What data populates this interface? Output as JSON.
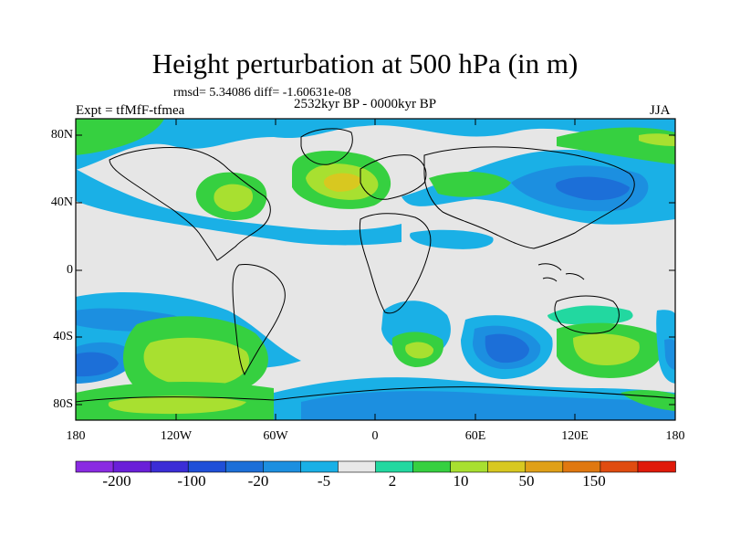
{
  "title": "Height perturbation at 500 hPa (in m)",
  "stats": "rmsd= 5.34086 diff= -1.60631e-08",
  "left_label": "Expt = tfMfF-tfmea",
  "center_label": "2532kyr BP - 0000kyr BP",
  "right_label": "JJA",
  "lat_labels": [
    "80N",
    "40N",
    "0",
    "40S",
    "80S"
  ],
  "lon_labels": [
    "180",
    "120W",
    "60W",
    "0",
    "60E",
    "120E",
    "180"
  ],
  "colorbar": {
    "colors": [
      "#8a2be2",
      "#6a1fd8",
      "#3b2dd6",
      "#1f4fd8",
      "#1c6fd8",
      "#1c8fe0",
      "#1ab0e6",
      "#e8e8e8",
      "#22d8a0",
      "#36d040",
      "#a8e030",
      "#d8c820",
      "#e0a018",
      "#e07810",
      "#e04c10",
      "#e01a0a"
    ],
    "labels": [
      "-200",
      "-100",
      "-20",
      "-5",
      "2",
      "10",
      "50",
      "150"
    ]
  },
  "map_data": {
    "projection": "cylindrical equidistant",
    "lon_range": [
      -180,
      180
    ],
    "lat_range": [
      -90,
      90
    ],
    "field_palette": {
      "neutral": "#e6e6e6",
      "light_blue": "#1ab0e6",
      "mid_blue": "#1c8fe0",
      "blue": "#1c6fd8",
      "teal": "#22d8a0",
      "green": "#36d040",
      "yellow_green": "#a8e030",
      "yellow": "#d8c820"
    }
  }
}
